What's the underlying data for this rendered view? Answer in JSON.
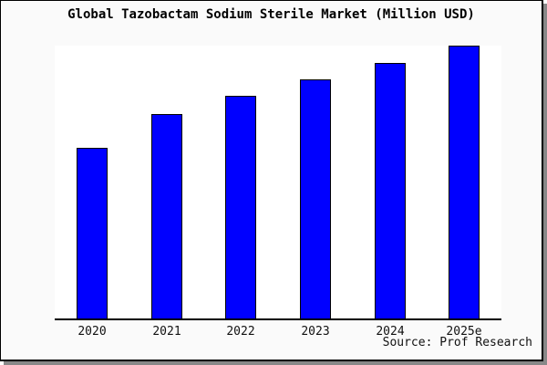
{
  "frame": {
    "background": "#fafafa",
    "border_color": "#000000",
    "shadow_color": "#888888",
    "plot_background": "#ffffff",
    "axis_color": "#000000"
  },
  "title": "Global Tazobactam Sodium Sterile Market (Million USD)",
  "source_note": "Source: Prof Research",
  "chart_data": {
    "type": "bar",
    "title": "Global Tazobactam Sodium Sterile Market (Million USD)",
    "categories": [
      "2020",
      "2021",
      "2022",
      "2023",
      "2024",
      "2025e"
    ],
    "values": [
      62.6,
      75.0,
      81.5,
      87.6,
      93.8,
      100
    ],
    "value_scale": "relative units; y-axis is unlabeled in the chart, tallest bar (2025e) = 100",
    "xlabel": "",
    "ylabel": "",
    "ylim": [
      0,
      100
    ],
    "grid": false,
    "legend": false,
    "bar_color": "#0000ff",
    "bar_border_color": "#000000",
    "source_note": "Source: Prof Research"
  }
}
